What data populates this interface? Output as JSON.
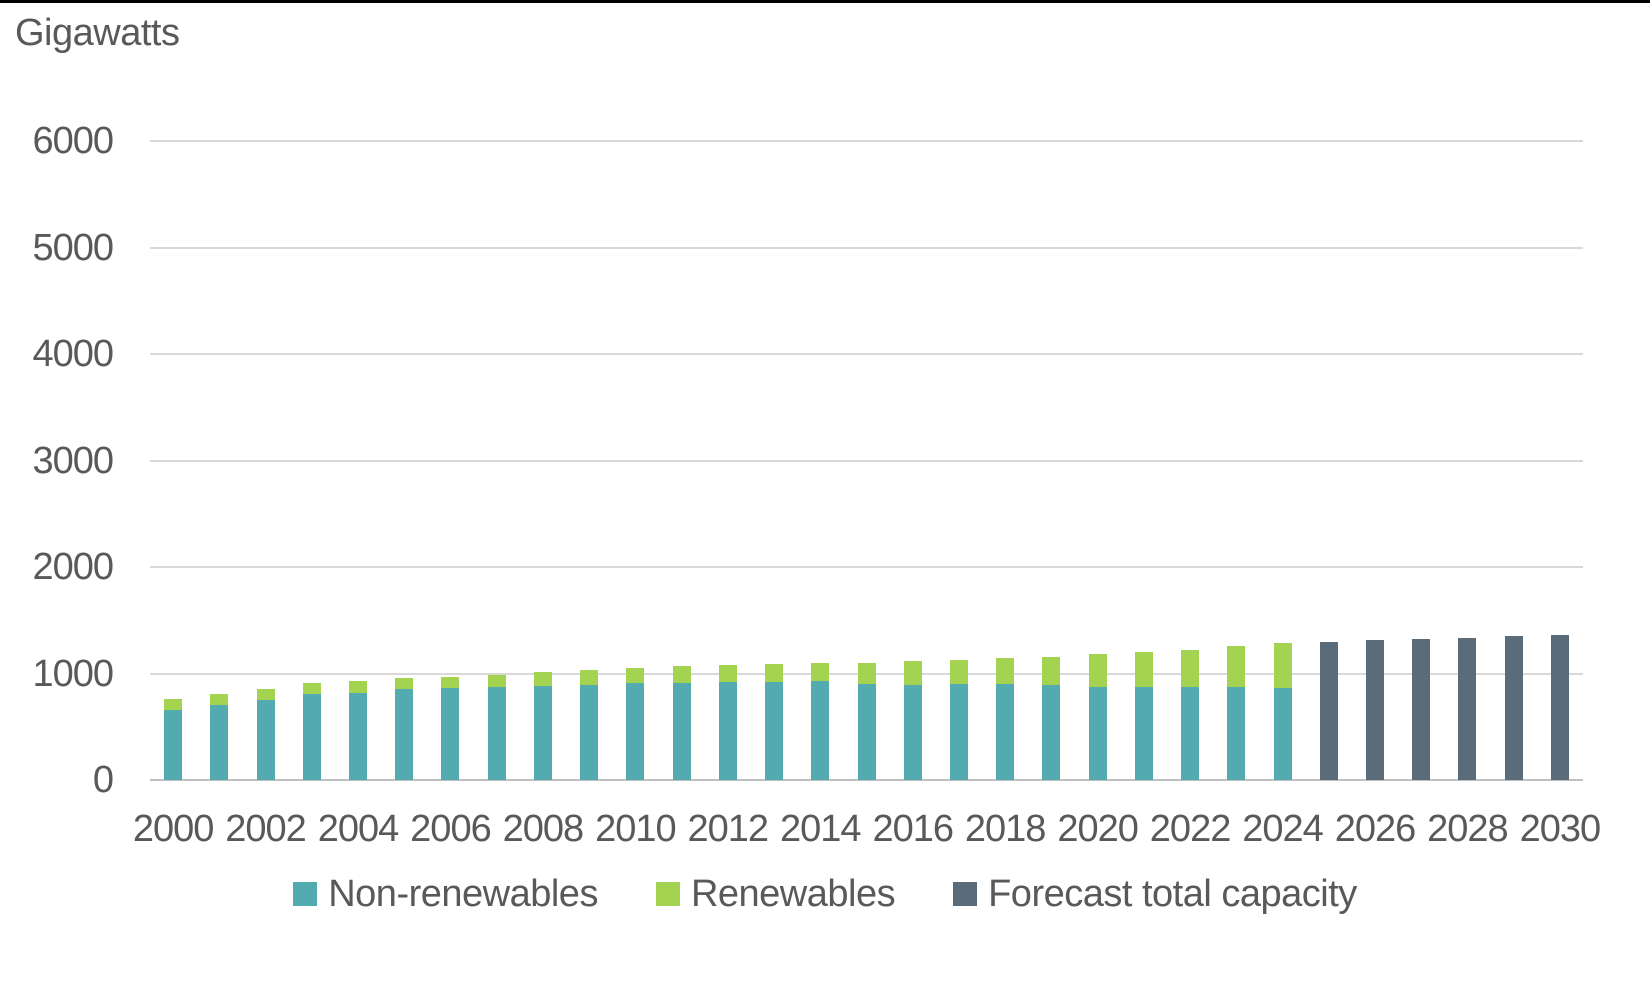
{
  "chart_data": {
    "type": "bar",
    "stacked": true,
    "title": "Gigawatts",
    "ylabel": "Gigawatts",
    "xlabel": "",
    "ylim": [
      0,
      6000
    ],
    "yticks": [
      0,
      1000,
      2000,
      3000,
      4000,
      5000,
      6000
    ],
    "grid": true,
    "legend_position": "bottom",
    "x": [
      2000,
      2001,
      2002,
      2003,
      2004,
      2005,
      2006,
      2007,
      2008,
      2009,
      2010,
      2011,
      2012,
      2013,
      2014,
      2015,
      2016,
      2017,
      2018,
      2019,
      2020,
      2021,
      2022,
      2023,
      2024,
      2025,
      2026,
      2027,
      2028,
      2029,
      2030
    ],
    "xtick_labels": [
      "2000",
      "2002",
      "2004",
      "2006",
      "2008",
      "2010",
      "2012",
      "2014",
      "2016",
      "2018",
      "2020",
      "2022",
      "2024",
      "2026",
      "2028",
      "2030"
    ],
    "series": [
      {
        "name": "Non-renewables",
        "color": "#54abaf",
        "values": [
          660,
          700,
          750,
          805,
          820,
          855,
          865,
          875,
          885,
          890,
          915,
          910,
          918,
          922,
          925,
          905,
          890,
          900,
          905,
          890,
          875,
          875,
          870,
          870,
          860,
          null,
          null,
          null,
          null,
          null,
          null
        ]
      },
      {
        "name": "Renewables",
        "color": "#a4d251",
        "values": [
          100,
          105,
          105,
          105,
          105,
          100,
          105,
          110,
          125,
          140,
          140,
          160,
          160,
          165,
          175,
          190,
          225,
          230,
          240,
          265,
          305,
          330,
          355,
          385,
          430,
          null,
          null,
          null,
          null,
          null,
          null
        ]
      },
      {
        "name": "Forecast total capacity",
        "color": "#5a6c79",
        "values": [
          null,
          null,
          null,
          null,
          null,
          null,
          null,
          null,
          null,
          null,
          null,
          null,
          null,
          null,
          null,
          null,
          null,
          null,
          null,
          null,
          null,
          null,
          null,
          null,
          null,
          1300,
          1313,
          1324,
          1338,
          1352,
          1365
        ]
      }
    ],
    "colors": {
      "gridline": "#d9d9d9",
      "axis_line": "#bfbfbf",
      "text": "#595959"
    }
  }
}
